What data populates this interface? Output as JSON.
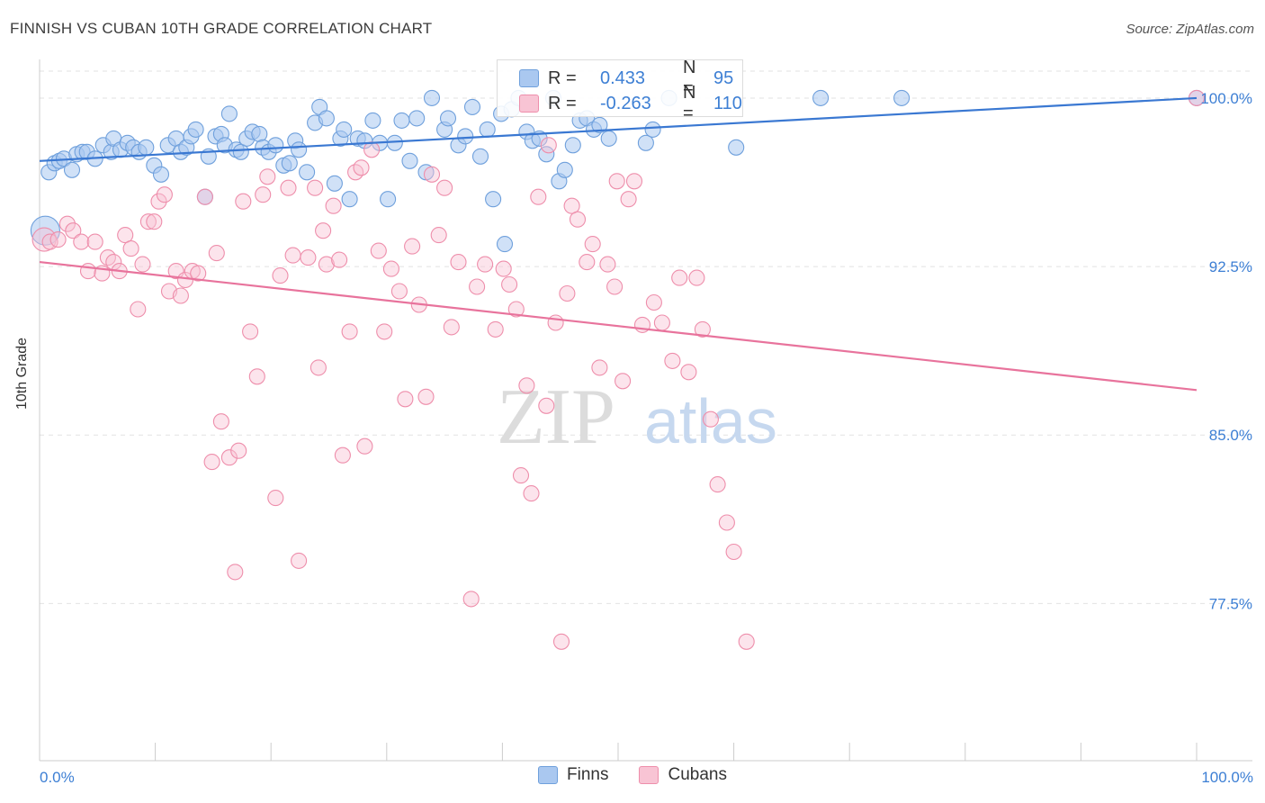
{
  "title": "FINNISH VS CUBAN 10TH GRADE CORRELATION CHART",
  "source": "Source: ZipAtlas.com",
  "watermark": {
    "zip": "ZIP",
    "atlas": "atlas"
  },
  "legend": [
    {
      "name": "Finns",
      "fill": "#aac8f0",
      "stroke": "#6fa0dc"
    },
    {
      "name": "Cubans",
      "fill": "#f8c4d4",
      "stroke": "#ee8eab"
    }
  ],
  "stats": [
    {
      "r_label": "R =",
      "r_value": "0.433",
      "n_label": "N =",
      "n_value": "95",
      "color": "#3d7fd4"
    },
    {
      "r_label": "R =",
      "r_value": "-0.263",
      "n_label": "N =",
      "n_value": "110",
      "color": "#3d7fd4"
    }
  ],
  "chart_data": {
    "type": "scatter",
    "title": "FINNISH VS CUBAN 10TH GRADE CORRELATION CHART",
    "xlabel": "",
    "ylabel": "10th Grade",
    "xlim": [
      0,
      100
    ],
    "ylim": [
      70.5,
      101.2
    ],
    "x_tick_labels": [
      "0.0%",
      "100.0%"
    ],
    "y_ticks": [
      77.5,
      85.0,
      92.5,
      100.0
    ],
    "y_tick_labels": [
      "77.5%",
      "85.0%",
      "92.5%",
      "100.0%"
    ],
    "grid": "horizontal dashed",
    "legend_position": "bottom-center",
    "series": [
      {
        "name": "Finns",
        "color": "#3a78d2",
        "trend": {
          "x": [
            0,
            100
          ],
          "y": [
            97.2,
            100.0
          ]
        },
        "points": [
          [
            0.5,
            94.1
          ],
          [
            0.8,
            96.7
          ],
          [
            1.3,
            97.1
          ],
          [
            1.7,
            97.2
          ],
          [
            2.1,
            97.3
          ],
          [
            2.8,
            96.8
          ],
          [
            3.2,
            97.5
          ],
          [
            3.7,
            97.6
          ],
          [
            4.1,
            97.6
          ],
          [
            4.8,
            97.3
          ],
          [
            5.5,
            97.9
          ],
          [
            6.2,
            97.6
          ],
          [
            6.4,
            98.2
          ],
          [
            7.0,
            97.7
          ],
          [
            7.6,
            98.0
          ],
          [
            8.1,
            97.8
          ],
          [
            8.6,
            97.6
          ],
          [
            9.2,
            97.8
          ],
          [
            9.9,
            97.0
          ],
          [
            10.5,
            96.6
          ],
          [
            11.1,
            97.9
          ],
          [
            11.8,
            98.2
          ],
          [
            12.2,
            97.6
          ],
          [
            12.7,
            97.8
          ],
          [
            13.1,
            98.3
          ],
          [
            13.5,
            98.6
          ],
          [
            14.3,
            95.6
          ],
          [
            14.6,
            97.4
          ],
          [
            15.2,
            98.3
          ],
          [
            15.7,
            98.4
          ],
          [
            16.0,
            97.9
          ],
          [
            16.4,
            99.3
          ],
          [
            17.0,
            97.7
          ],
          [
            17.4,
            97.6
          ],
          [
            17.9,
            98.2
          ],
          [
            18.4,
            98.5
          ],
          [
            19.0,
            98.4
          ],
          [
            19.3,
            97.8
          ],
          [
            19.8,
            97.6
          ],
          [
            20.4,
            97.9
          ],
          [
            21.1,
            97.0
          ],
          [
            21.6,
            97.1
          ],
          [
            22.1,
            98.1
          ],
          [
            22.4,
            97.7
          ],
          [
            23.1,
            96.7
          ],
          [
            23.8,
            98.9
          ],
          [
            24.2,
            99.6
          ],
          [
            24.8,
            99.1
          ],
          [
            25.5,
            96.2
          ],
          [
            26.0,
            98.2
          ],
          [
            26.3,
            98.6
          ],
          [
            26.8,
            95.5
          ],
          [
            27.5,
            98.2
          ],
          [
            28.1,
            98.1
          ],
          [
            28.8,
            99.0
          ],
          [
            29.4,
            98.0
          ],
          [
            30.1,
            95.5
          ],
          [
            30.7,
            98.0
          ],
          [
            31.3,
            99.0
          ],
          [
            32.0,
            97.2
          ],
          [
            32.6,
            99.1
          ],
          [
            33.4,
            96.7
          ],
          [
            33.9,
            100.0
          ],
          [
            35.0,
            98.6
          ],
          [
            35.3,
            99.1
          ],
          [
            36.2,
            97.9
          ],
          [
            36.8,
            98.3
          ],
          [
            37.4,
            99.6
          ],
          [
            38.1,
            97.4
          ],
          [
            38.7,
            98.6
          ],
          [
            39.2,
            95.5
          ],
          [
            39.9,
            99.3
          ],
          [
            40.2,
            93.5
          ],
          [
            40.8,
            99.5
          ],
          [
            41.4,
            100.0
          ],
          [
            42.1,
            98.5
          ],
          [
            42.6,
            98.1
          ],
          [
            43.2,
            98.2
          ],
          [
            43.8,
            97.5
          ],
          [
            44.4,
            100.0
          ],
          [
            44.9,
            96.3
          ],
          [
            45.4,
            96.8
          ],
          [
            46.1,
            97.9
          ],
          [
            46.7,
            99.0
          ],
          [
            47.3,
            99.1
          ],
          [
            47.9,
            98.6
          ],
          [
            48.4,
            98.8
          ],
          [
            49.2,
            98.2
          ],
          [
            52.4,
            98.0
          ],
          [
            53.0,
            98.6
          ],
          [
            54.4,
            100.0
          ],
          [
            60.2,
            97.8
          ],
          [
            67.5,
            100.0
          ],
          [
            74.5,
            100.0
          ],
          [
            100.0,
            100.0
          ]
        ]
      },
      {
        "name": "Cubans",
        "color": "#e8739c",
        "trend": {
          "x": [
            0,
            100
          ],
          "y": [
            92.7,
            87.0
          ]
        },
        "points": [
          [
            0.4,
            93.7
          ],
          [
            0.9,
            93.6
          ],
          [
            1.6,
            93.7
          ],
          [
            2.4,
            94.4
          ],
          [
            2.9,
            94.1
          ],
          [
            3.6,
            93.6
          ],
          [
            4.2,
            92.3
          ],
          [
            4.8,
            93.6
          ],
          [
            5.4,
            92.2
          ],
          [
            5.9,
            92.9
          ],
          [
            6.4,
            92.7
          ],
          [
            6.9,
            92.3
          ],
          [
            7.4,
            93.9
          ],
          [
            7.9,
            93.3
          ],
          [
            8.5,
            90.6
          ],
          [
            8.9,
            92.6
          ],
          [
            9.4,
            94.5
          ],
          [
            9.9,
            94.5
          ],
          [
            10.3,
            95.4
          ],
          [
            10.8,
            95.7
          ],
          [
            11.2,
            91.4
          ],
          [
            11.8,
            92.3
          ],
          [
            12.2,
            91.2
          ],
          [
            12.6,
            91.9
          ],
          [
            13.2,
            92.3
          ],
          [
            13.7,
            92.2
          ],
          [
            14.3,
            95.6
          ],
          [
            14.9,
            83.8
          ],
          [
            15.3,
            93.1
          ],
          [
            15.7,
            85.6
          ],
          [
            16.4,
            84.0
          ],
          [
            16.9,
            78.9
          ],
          [
            17.2,
            84.3
          ],
          [
            17.6,
            95.4
          ],
          [
            18.2,
            89.6
          ],
          [
            18.8,
            87.6
          ],
          [
            19.3,
            95.7
          ],
          [
            19.7,
            96.5
          ],
          [
            20.4,
            82.2
          ],
          [
            20.8,
            92.1
          ],
          [
            21.5,
            96.0
          ],
          [
            21.9,
            93.0
          ],
          [
            22.4,
            79.4
          ],
          [
            23.2,
            92.9
          ],
          [
            23.8,
            96.0
          ],
          [
            24.1,
            88.0
          ],
          [
            24.5,
            94.1
          ],
          [
            24.8,
            92.6
          ],
          [
            25.4,
            95.2
          ],
          [
            25.9,
            92.8
          ],
          [
            26.2,
            84.1
          ],
          [
            26.8,
            89.6
          ],
          [
            27.3,
            96.7
          ],
          [
            27.8,
            96.9
          ],
          [
            28.1,
            84.5
          ],
          [
            28.7,
            97.7
          ],
          [
            29.3,
            93.2
          ],
          [
            29.8,
            89.6
          ],
          [
            30.4,
            92.4
          ],
          [
            31.1,
            91.4
          ],
          [
            31.6,
            86.6
          ],
          [
            32.2,
            93.4
          ],
          [
            32.8,
            90.8
          ],
          [
            33.4,
            86.7
          ],
          [
            33.9,
            96.6
          ],
          [
            34.5,
            93.9
          ],
          [
            35.0,
            96.0
          ],
          [
            35.6,
            89.8
          ],
          [
            36.2,
            92.7
          ],
          [
            37.3,
            77.7
          ],
          [
            37.8,
            91.6
          ],
          [
            38.5,
            92.6
          ],
          [
            39.4,
            89.7
          ],
          [
            40.1,
            92.4
          ],
          [
            40.6,
            91.7
          ],
          [
            41.2,
            90.6
          ],
          [
            41.6,
            83.2
          ],
          [
            42.1,
            87.2
          ],
          [
            42.5,
            82.4
          ],
          [
            43.1,
            95.6
          ],
          [
            43.8,
            86.3
          ],
          [
            44.6,
            90.0
          ],
          [
            45.1,
            75.8
          ],
          [
            45.6,
            91.3
          ],
          [
            46.0,
            95.2
          ],
          [
            46.5,
            94.6
          ],
          [
            47.3,
            92.7
          ],
          [
            47.8,
            93.5
          ],
          [
            48.4,
            88.0
          ],
          [
            49.1,
            92.6
          ],
          [
            49.7,
            91.6
          ],
          [
            50.4,
            87.4
          ],
          [
            50.9,
            95.5
          ],
          [
            51.4,
            96.3
          ],
          [
            52.1,
            89.9
          ],
          [
            53.1,
            90.9
          ],
          [
            53.8,
            90.0
          ],
          [
            54.7,
            88.3
          ],
          [
            55.3,
            92.0
          ],
          [
            56.1,
            87.8
          ],
          [
            56.8,
            92.0
          ],
          [
            57.3,
            89.7
          ],
          [
            58.0,
            85.7
          ],
          [
            58.6,
            82.8
          ],
          [
            59.4,
            81.1
          ],
          [
            60.0,
            79.8
          ],
          [
            61.1,
            75.8
          ],
          [
            49.9,
            96.3
          ],
          [
            44.0,
            97.9
          ],
          [
            100.0,
            100.0
          ]
        ]
      }
    ]
  }
}
